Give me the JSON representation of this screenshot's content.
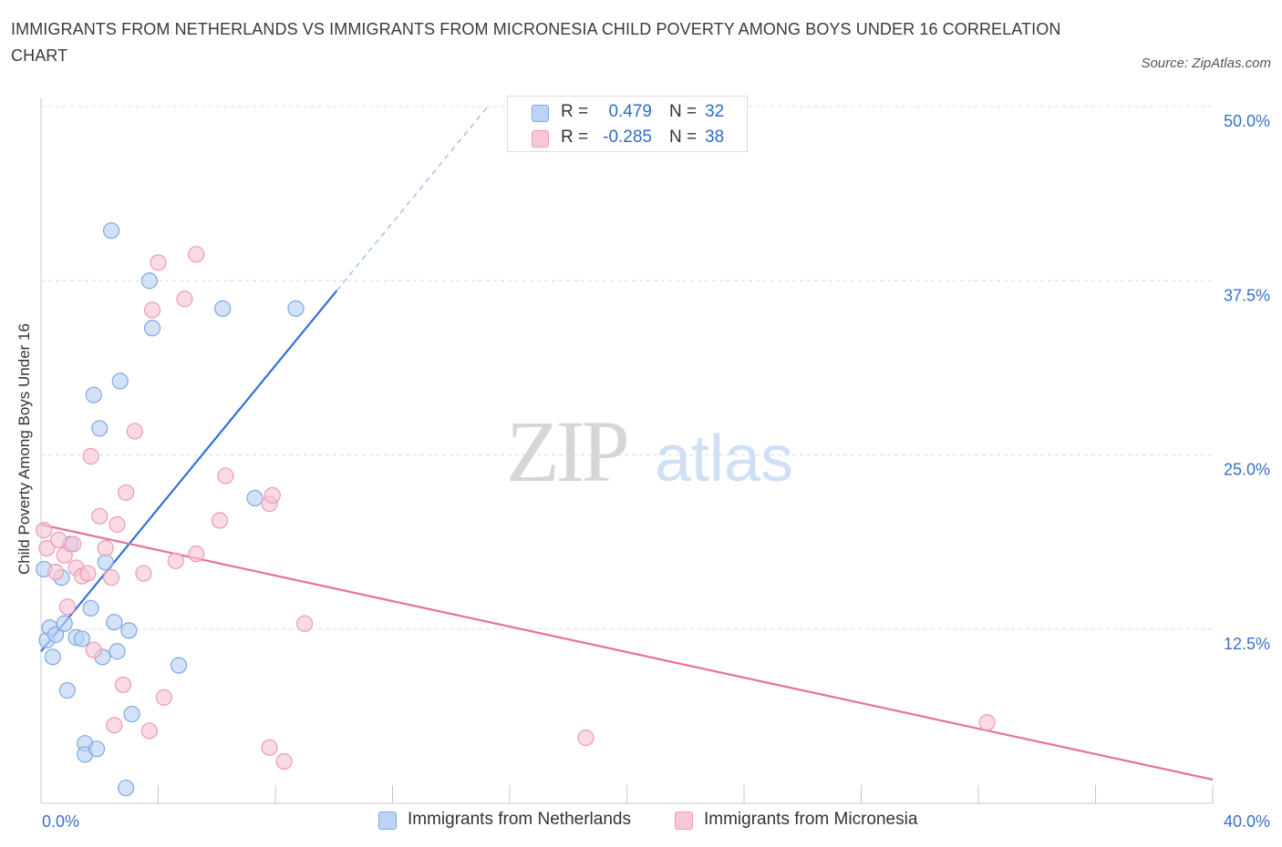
{
  "title": "IMMIGRANTS FROM NETHERLANDS VS IMMIGRANTS FROM MICRONESIA CHILD POVERTY AMONG BOYS UNDER 16 CORRELATION CHART",
  "source": "Source: ZipAtlas.com",
  "watermark": {
    "zip": "ZIP",
    "atlas": "atlas"
  },
  "legend": {
    "netherlands": {
      "r_label": "R =",
      "r_value": "0.479",
      "n_label": "N =",
      "n_value": "32"
    },
    "micronesia": {
      "r_label": "R =",
      "r_value": "-0.285",
      "n_label": "N =",
      "n_value": "38"
    }
  },
  "bottom_legend": {
    "netherlands": "Immigrants from Netherlands",
    "micronesia": "Immigrants from Micronesia"
  },
  "colors": {
    "netherlands_fill": "#bcd3f5",
    "netherlands_stroke": "#7fa8e0",
    "netherlands_line": "#2f73d3",
    "micronesia_fill": "#f8c6d6",
    "micronesia_stroke": "#ee9ab6",
    "micronesia_line": "#e5729a",
    "axis_text": "#3a6fc8",
    "grid": "#dcdcdc"
  },
  "chart_data": {
    "type": "scatter",
    "title": "IMMIGRANTS FROM NETHERLANDS VS IMMIGRANTS FROM MICRONESIA CHILD POVERTY AMONG BOYS UNDER 16 CORRELATION CHART",
    "xlabel": "",
    "ylabel": "Child Poverty Among Boys Under 16",
    "xlim": [
      0,
      40
    ],
    "ylim": [
      0,
      50
    ],
    "x_tick_labels": {
      "min": "0.0%",
      "max": "40.0%"
    },
    "y_ticks": [
      {
        "value": 12.5,
        "label": "12.5%"
      },
      {
        "value": 25.0,
        "label": "25.0%"
      },
      {
        "value": 37.5,
        "label": "37.5%"
      },
      {
        "value": 50.0,
        "label": "50.0%"
      }
    ],
    "series": [
      {
        "name": "Immigrants from Netherlands",
        "r": 0.479,
        "n": 32,
        "trend": {
          "x0": 0.0,
          "y0": 10.9,
          "x1": 10.1,
          "y1": 36.8,
          "dashed_to_x": 15.3
        },
        "points": [
          [
            0.1,
            16.8
          ],
          [
            0.2,
            11.7
          ],
          [
            0.3,
            12.6
          ],
          [
            0.4,
            10.5
          ],
          [
            0.5,
            12.1
          ],
          [
            0.7,
            16.2
          ],
          [
            0.8,
            12.9
          ],
          [
            0.9,
            8.1
          ],
          [
            1.0,
            18.6
          ],
          [
            1.2,
            11.9
          ],
          [
            1.4,
            11.8
          ],
          [
            1.5,
            4.3
          ],
          [
            1.5,
            3.5
          ],
          [
            1.7,
            14.0
          ],
          [
            1.8,
            29.3
          ],
          [
            1.9,
            3.9
          ],
          [
            2.0,
            26.9
          ],
          [
            2.1,
            10.5
          ],
          [
            2.2,
            17.3
          ],
          [
            2.4,
            41.1
          ],
          [
            2.5,
            13.0
          ],
          [
            2.6,
            10.9
          ],
          [
            2.7,
            30.3
          ],
          [
            2.9,
            1.1
          ],
          [
            3.0,
            12.4
          ],
          [
            3.1,
            6.4
          ],
          [
            3.7,
            37.5
          ],
          [
            3.8,
            34.1
          ],
          [
            4.7,
            9.9
          ],
          [
            6.2,
            35.5
          ],
          [
            7.3,
            21.9
          ],
          [
            8.7,
            35.5
          ]
        ]
      },
      {
        "name": "Immigrants from Micronesia",
        "r": -0.285,
        "n": 38,
        "trend": {
          "x0": 0.0,
          "y0": 20.0,
          "x1": 40.0,
          "y1": 1.7
        },
        "points": [
          [
            0.1,
            19.6
          ],
          [
            0.2,
            18.3
          ],
          [
            0.5,
            16.6
          ],
          [
            0.6,
            18.9
          ],
          [
            0.8,
            17.8
          ],
          [
            0.9,
            14.1
          ],
          [
            1.1,
            18.6
          ],
          [
            1.2,
            16.9
          ],
          [
            1.4,
            16.3
          ],
          [
            1.6,
            16.5
          ],
          [
            1.7,
            24.9
          ],
          [
            1.8,
            11.0
          ],
          [
            2.0,
            20.6
          ],
          [
            2.2,
            18.3
          ],
          [
            2.4,
            16.2
          ],
          [
            2.5,
            5.6
          ],
          [
            2.6,
            20.0
          ],
          [
            2.8,
            8.5
          ],
          [
            2.9,
            22.3
          ],
          [
            3.2,
            26.7
          ],
          [
            3.5,
            16.5
          ],
          [
            3.7,
            5.2
          ],
          [
            3.8,
            35.4
          ],
          [
            4.0,
            38.8
          ],
          [
            4.2,
            7.6
          ],
          [
            4.6,
            17.4
          ],
          [
            4.9,
            36.2
          ],
          [
            5.3,
            17.9
          ],
          [
            5.3,
            39.4
          ],
          [
            6.1,
            20.3
          ],
          [
            6.3,
            23.5
          ],
          [
            7.8,
            4.0
          ],
          [
            7.8,
            21.5
          ],
          [
            7.9,
            22.1
          ],
          [
            8.3,
            3.0
          ],
          [
            9.0,
            12.9
          ],
          [
            18.6,
            4.7
          ],
          [
            32.3,
            5.8
          ]
        ]
      }
    ]
  }
}
